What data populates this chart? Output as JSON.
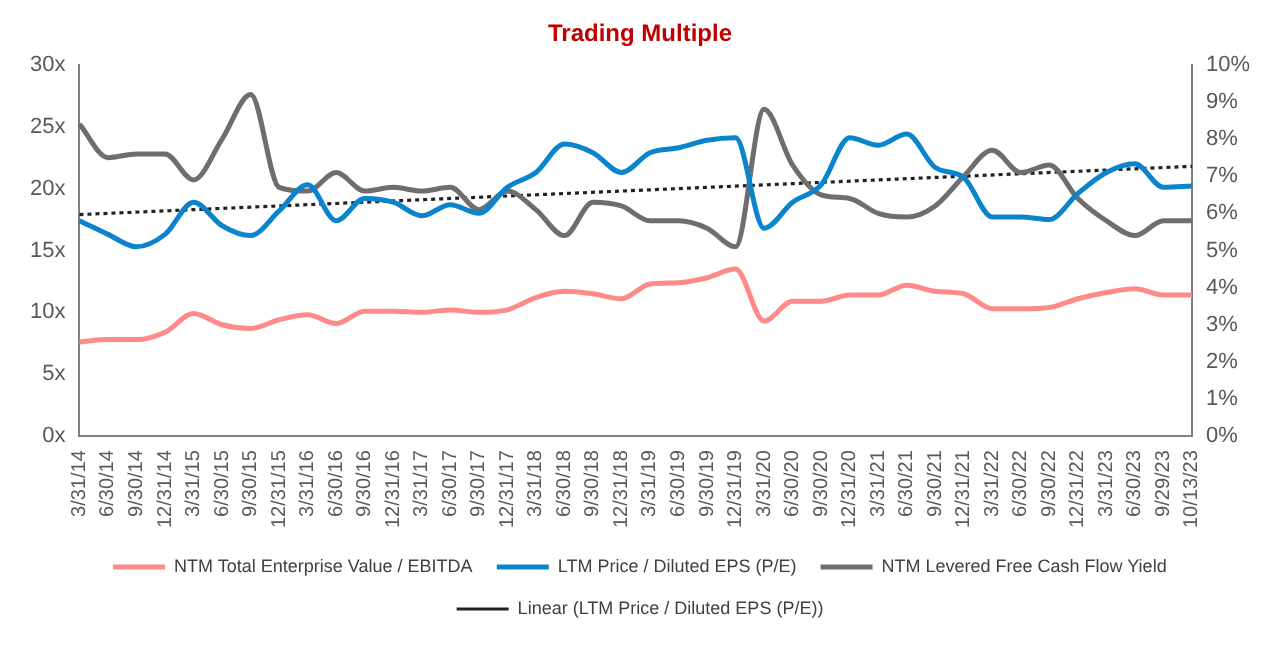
{
  "chart_data": {
    "type": "line",
    "title": "Trading Multiple",
    "categories": [
      "3/31/14",
      "6/30/14",
      "9/30/14",
      "12/31/14",
      "3/31/15",
      "6/30/15",
      "9/30/15",
      "12/31/15",
      "3/31/16",
      "6/30/16",
      "9/30/16",
      "12/31/16",
      "3/31/17",
      "6/30/17",
      "9/30/17",
      "12/31/17",
      "3/31/18",
      "6/30/18",
      "9/30/18",
      "12/31/18",
      "3/31/19",
      "6/30/19",
      "9/30/19",
      "12/31/19",
      "3/31/20",
      "6/30/20",
      "9/30/20",
      "12/31/20",
      "3/31/21",
      "6/30/21",
      "9/30/21",
      "12/31/21",
      "3/31/22",
      "6/30/22",
      "9/30/22",
      "12/31/22",
      "3/31/23",
      "6/30/23",
      "9/29/23",
      "10/13/23"
    ],
    "series": [
      {
        "name": "NTM Total Enterprise Value / EBITDA",
        "color": "#ff8a8a",
        "values": [
          7.6,
          7.8,
          7.8,
          8.4,
          9.9,
          9.0,
          8.7,
          9.4,
          9.8,
          9.1,
          10.1,
          10.1,
          10.0,
          10.2,
          10.0,
          10.2,
          11.2,
          11.7,
          11.5,
          11.1,
          12.3,
          12.4,
          12.8,
          13.5,
          9.3,
          10.9,
          10.9,
          11.4,
          11.4,
          12.2,
          11.7,
          11.5,
          10.3,
          10.3,
          10.4,
          11.1,
          11.6,
          11.9,
          11.4,
          11.4
        ]
      },
      {
        "name": "LTM Price / Diluted EPS (P/E)",
        "color": "#0a84cc",
        "values": [
          17.4,
          16.3,
          15.3,
          16.3,
          18.9,
          17.0,
          16.2,
          18.2,
          20.3,
          17.4,
          19.2,
          18.9,
          17.8,
          18.7,
          18.0,
          20.1,
          21.3,
          23.6,
          22.9,
          21.3,
          22.9,
          23.3,
          23.9,
          24.1,
          16.8,
          18.9,
          20.3,
          24.1,
          23.5,
          24.4,
          21.7,
          20.9,
          17.7,
          17.7,
          17.5,
          19.6,
          21.3,
          22.0,
          20.1,
          20.2
        ]
      },
      {
        "name": "NTM Levered Free Cash Flow Yield",
        "color": "#6e6e6e",
        "axis": "y2",
        "values": [
          8.4,
          7.5,
          7.6,
          7.6,
          6.9,
          8.0,
          9.2,
          6.7,
          6.6,
          7.1,
          6.6,
          6.7,
          6.6,
          6.7,
          6.1,
          6.6,
          6.1,
          5.4,
          6.3,
          6.2,
          5.8,
          5.8,
          5.6,
          5.1,
          8.8,
          7.3,
          6.5,
          6.4,
          6.0,
          5.9,
          6.2,
          7.0,
          7.7,
          7.1,
          7.3,
          6.4,
          5.8,
          5.4,
          5.8,
          5.8
        ]
      },
      {
        "name": "Linear (LTM Price / Diluted EPS (P/E))",
        "color": "#222222",
        "line_style": "dotted",
        "x": [
          "3/31/14",
          "10/13/23"
        ],
        "values": [
          17.9,
          21.8
        ]
      }
    ],
    "ylim": [
      0,
      30
    ],
    "yticks": [
      {
        "value": 0,
        "label": "0x"
      },
      {
        "value": 5,
        "label": "5x"
      },
      {
        "value": 10,
        "label": "10x"
      },
      {
        "value": 15,
        "label": "15x"
      },
      {
        "value": 20,
        "label": "20x"
      },
      {
        "value": 25,
        "label": "25x"
      },
      {
        "value": 30,
        "label": "30x"
      }
    ],
    "y2lim": [
      0,
      10
    ],
    "y2ticks": [
      {
        "value": 0,
        "label": "0%"
      },
      {
        "value": 1,
        "label": "1%"
      },
      {
        "value": 2,
        "label": "2%"
      },
      {
        "value": 3,
        "label": "3%"
      },
      {
        "value": 4,
        "label": "4%"
      },
      {
        "value": 5,
        "label": "5%"
      },
      {
        "value": 6,
        "label": "6%"
      },
      {
        "value": 7,
        "label": "7%"
      },
      {
        "value": 8,
        "label": "8%"
      },
      {
        "value": 9,
        "label": "9%"
      },
      {
        "value": 10,
        "label": "10%"
      }
    ],
    "grid": false,
    "legend": "bottom",
    "marker": "none",
    "line_style": "solid"
  }
}
